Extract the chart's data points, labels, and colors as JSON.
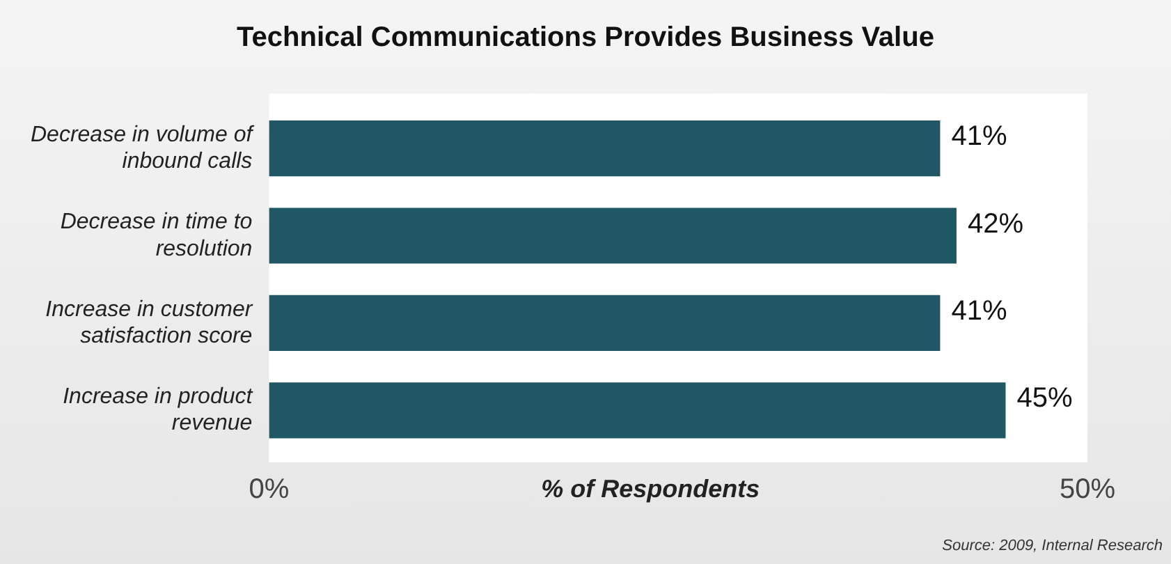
{
  "chart_data": {
    "type": "bar",
    "orientation": "horizontal",
    "title": "Technical Communications Provides Business Value",
    "categories": [
      "Decrease in volume of inbound calls",
      "Decrease in time to resolution",
      "Increase in customer satisfaction score",
      "Increase in product revenue"
    ],
    "values": [
      41,
      42,
      41,
      45
    ],
    "color": "#1f5864",
    "value_labels": [
      "41%",
      "42%",
      "41%",
      "45%"
    ],
    "xlim": [
      0,
      50
    ],
    "xticks": [
      {
        "value": 0,
        "label": "0%"
      },
      {
        "value": 50,
        "label": "50%"
      }
    ],
    "xlabel": "% of Respondents",
    "grid": false,
    "legend": false,
    "annotations": [
      "Source: 2009, Internal Research"
    ]
  }
}
